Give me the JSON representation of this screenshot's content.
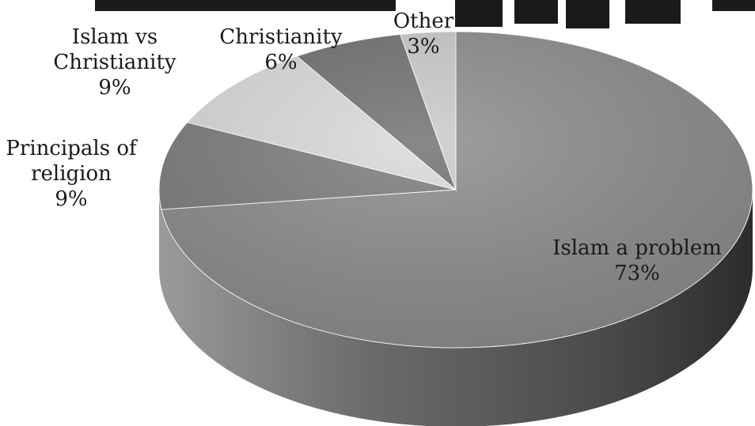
{
  "chart_data": {
    "type": "pie",
    "title": "",
    "slices": [
      {
        "label": "Islam a problem",
        "label_lines": [
          "Islam a problem"
        ],
        "value": 73,
        "value_text": "73%",
        "color": "#8a8a8a"
      },
      {
        "label": "Principals of religion",
        "label_lines": [
          "Principals of",
          "religion"
        ],
        "value": 9,
        "value_text": "9%",
        "color": "#7a7a7a"
      },
      {
        "label": "Islam vs Christianity",
        "label_lines": [
          "Islam vs",
          "Christianity"
        ],
        "value": 9,
        "value_text": "9%",
        "color": "#d9d9d9"
      },
      {
        "label": "Christianity",
        "label_lines": [
          "Christianity"
        ],
        "value": 6,
        "value_text": "6%",
        "color": "#6e6e6e"
      },
      {
        "label": "Other",
        "label_lines": [
          "Other"
        ],
        "value": 3,
        "value_text": "3%",
        "color": "#c9c9c9"
      }
    ],
    "style": "3d",
    "grayscale": true
  }
}
